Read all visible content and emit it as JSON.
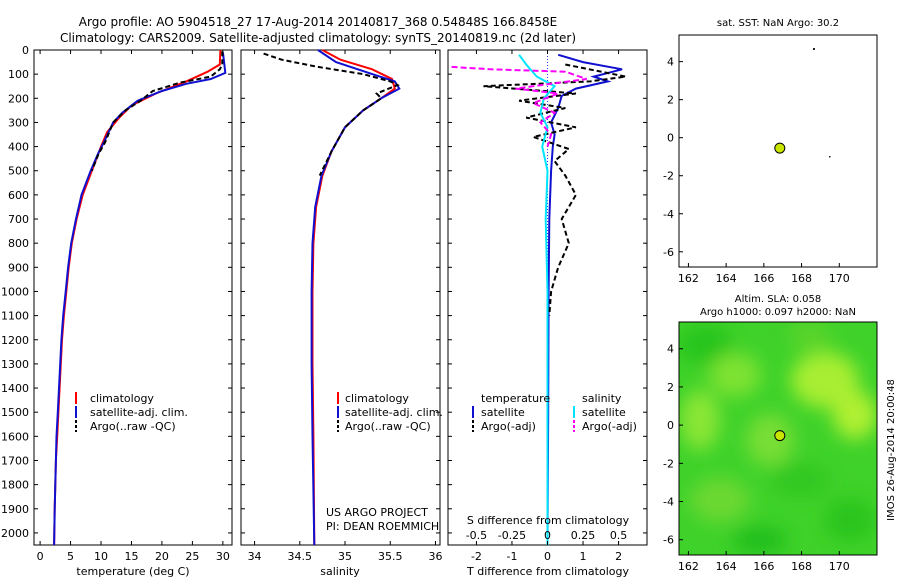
{
  "header": {
    "line1": "Argo profile: AO 5904518_27 17-Aug-2014 20140817_368 0.54848S 166.8458E",
    "line2": "Climatology: CARS2009. Satellite-adjusted climatology: synTS_20140819.nc (2d later)"
  },
  "colors": {
    "climatology": "#ff0000",
    "satellite": "#1010d0",
    "argo": "#000000",
    "salinity_sat": "#00e5ff",
    "argo_adj_s": "#ff00ff",
    "zero_line": "#0000ff",
    "dot": "#c8e600"
  },
  "stamp": "IMOS 26-Aug-2014 20:00:48",
  "chart_data": [
    {
      "id": "temperature",
      "type": "line",
      "xlabel": "temperature (deg C)",
      "ylim": [
        2050,
        0
      ],
      "xlim": [
        -1,
        31.5
      ],
      "xticks": [
        "0",
        "5",
        "10",
        "15",
        "20",
        "25",
        "30"
      ],
      "xtick_values": [
        0,
        5,
        10,
        15,
        20,
        25,
        30
      ],
      "yticks": [
        "0",
        "100",
        "200",
        "300",
        "400",
        "500",
        "600",
        "700",
        "800",
        "900",
        "1000",
        "1100",
        "1200",
        "1300",
        "1400",
        "1500",
        "1600",
        "1700",
        "1800",
        "1900",
        "2000"
      ],
      "legend": {
        "position": "lower-center",
        "entries": [
          "climatology",
          "satellite-adj. clim.",
          "Argo(..raw -QC)"
        ]
      },
      "series": [
        {
          "name": "climatology",
          "color": "#ff0000",
          "dash": "",
          "points": [
            [
              29.6,
              0
            ],
            [
              29.5,
              60
            ],
            [
              27.5,
              90
            ],
            [
              24,
              130
            ],
            [
              19,
              180
            ],
            [
              15,
              230
            ],
            [
              13,
              280
            ],
            [
              11,
              340
            ],
            [
              10,
              400
            ],
            [
              8.5,
              500
            ],
            [
              7,
              600
            ],
            [
              6,
              700
            ],
            [
              5.2,
              800
            ],
            [
              4.7,
              900
            ],
            [
              4.3,
              1000
            ],
            [
              3.9,
              1100
            ],
            [
              3.6,
              1200
            ],
            [
              3.4,
              1300
            ],
            [
              3.2,
              1400
            ],
            [
              3.0,
              1500
            ],
            [
              2.8,
              1600
            ],
            [
              2.6,
              1700
            ],
            [
              2.5,
              1800
            ],
            [
              2.4,
              1900
            ],
            [
              2.3,
              2050
            ]
          ]
        },
        {
          "name": "satellite-adj. clim.",
          "color": "#1010d0",
          "dash": "",
          "points": [
            [
              30,
              10
            ],
            [
              30.2,
              50
            ],
            [
              30.4,
              95
            ],
            [
              28,
              120
            ],
            [
              24,
              140
            ],
            [
              20,
              170
            ],
            [
              16,
              210
            ],
            [
              13.5,
              260
            ],
            [
              12,
              300
            ],
            [
              10.5,
              380
            ],
            [
              9.5,
              430
            ],
            [
              8.3,
              500
            ],
            [
              6.8,
              600
            ],
            [
              5.9,
              700
            ],
            [
              5.1,
              800
            ],
            [
              4.6,
              900
            ],
            [
              4.2,
              1000
            ],
            [
              3.8,
              1100
            ],
            [
              3.5,
              1200
            ],
            [
              3.3,
              1300
            ],
            [
              3.1,
              1400
            ],
            [
              2.9,
              1500
            ],
            [
              2.7,
              1600
            ],
            [
              2.6,
              1700
            ],
            [
              2.5,
              1800
            ],
            [
              2.4,
              1900
            ],
            [
              2.3,
              2050
            ]
          ]
        },
        {
          "name": "Argo(..raw -QC)",
          "color": "#000000",
          "dash": "5,3",
          "points": [
            [
              29.9,
              5
            ],
            [
              29.9,
              60
            ],
            [
              29.5,
              80
            ],
            [
              28,
              110
            ],
            [
              23,
              135
            ],
            [
              18.5,
              170
            ],
            [
              16.5,
              210
            ],
            [
              14,
              250
            ],
            [
              12,
              300
            ],
            [
              10.7,
              380
            ],
            [
              9.6,
              430
            ],
            [
              8.5,
              500
            ]
          ]
        }
      ]
    },
    {
      "id": "salinity",
      "type": "line",
      "xlabel": "salinity",
      "ylim": [
        2050,
        0
      ],
      "xlim": [
        33.85,
        36.05
      ],
      "xticks": [
        "34",
        "34.5",
        "35",
        "35.5",
        "36"
      ],
      "xtick_values": [
        34,
        34.5,
        35,
        35.5,
        36
      ],
      "legend": {
        "position": "lower-center",
        "entries": [
          "climatology",
          "satellite-adj. clim.",
          "Argo(..raw -QC)"
        ]
      },
      "annotation": [
        "US ARGO PROJECT",
        "PI: DEAN ROEMMICH"
      ],
      "series": [
        {
          "name": "climatology",
          "color": "#ff0000",
          "dash": "",
          "points": [
            [
              34.75,
              0
            ],
            [
              34.95,
              40
            ],
            [
              35.3,
              80
            ],
            [
              35.52,
              120
            ],
            [
              35.55,
              160
            ],
            [
              35.4,
              200
            ],
            [
              35.2,
              250
            ],
            [
              35.0,
              320
            ],
            [
              34.85,
              420
            ],
            [
              34.75,
              520
            ],
            [
              34.68,
              650
            ],
            [
              34.65,
              800
            ],
            [
              34.64,
              1000
            ],
            [
              34.64,
              1300
            ],
            [
              34.65,
              1600
            ],
            [
              34.66,
              2050
            ]
          ]
        },
        {
          "name": "satellite-adj. clim.",
          "color": "#1010d0",
          "dash": "",
          "points": [
            [
              34.7,
              0
            ],
            [
              34.9,
              50
            ],
            [
              35.3,
              100
            ],
            [
              35.55,
              130
            ],
            [
              35.6,
              160
            ],
            [
              35.4,
              200
            ],
            [
              35.2,
              250
            ],
            [
              35.0,
              320
            ],
            [
              34.85,
              420
            ],
            [
              34.74,
              520
            ],
            [
              34.67,
              650
            ],
            [
              34.64,
              800
            ],
            [
              34.63,
              1000
            ],
            [
              34.63,
              1300
            ],
            [
              34.64,
              1600
            ],
            [
              34.66,
              2050
            ]
          ]
        },
        {
          "name": "Argo(..raw -QC)",
          "color": "#000000",
          "dash": "5,3",
          "points": [
            [
              34.1,
              15
            ],
            [
              34.3,
              40
            ],
            [
              34.7,
              70
            ],
            [
              35.2,
              100
            ],
            [
              35.5,
              130
            ],
            [
              35.58,
              145
            ],
            [
              35.35,
              180
            ],
            [
              35.4,
              200
            ],
            [
              35.2,
              250
            ],
            [
              35.0,
              320
            ],
            [
              34.85,
              420
            ],
            [
              34.72,
              520
            ]
          ]
        }
      ]
    },
    {
      "id": "difference",
      "type": "line",
      "xlabel": "T difference from climatology",
      "top_xlabel": "S difference from climatology",
      "ylim": [
        2050,
        0
      ],
      "xlim": [
        -2.8,
        2.8
      ],
      "xticks": [
        "-2",
        "-1",
        "0",
        "1",
        "2"
      ],
      "xtick_values": [
        -2,
        -1,
        0,
        1,
        2
      ],
      "top_xticks": [
        "-0.5",
        "-0.25",
        "0",
        "0.25",
        "0.5"
      ],
      "top_xtick_values": [
        -2,
        -1,
        0,
        1,
        2
      ],
      "legend": {
        "position": "lower-center",
        "headers": [
          "temperature",
          "salinity"
        ],
        "entries": [
          "satellite",
          "Argo(-adj)",
          "satellite",
          "Argo(-adj)"
        ]
      },
      "series": [
        {
          "name": "T satellite",
          "color": "#1010d0",
          "dash": "",
          "points": [
            [
              0.3,
              20
            ],
            [
              1.0,
              50
            ],
            [
              2.1,
              80
            ],
            [
              1.3,
              110
            ],
            [
              1.7,
              130
            ],
            [
              0.8,
              160
            ],
            [
              0.4,
              190
            ],
            [
              0.3,
              240
            ],
            [
              0.1,
              300
            ],
            [
              0.2,
              350
            ],
            [
              0.15,
              400
            ],
            [
              0.1,
              500
            ],
            [
              0.05,
              700
            ],
            [
              0.03,
              1000
            ],
            [
              0.02,
              1500
            ],
            [
              0.0,
              2050
            ]
          ]
        },
        {
          "name": "T Argo(-adj)",
          "color": "#000000",
          "dash": "5,3",
          "points": [
            [
              0.5,
              60
            ],
            [
              2.2,
              110
            ],
            [
              1.2,
              130
            ],
            [
              -1.8,
              150
            ],
            [
              0.8,
              180
            ],
            [
              -0.8,
              210
            ],
            [
              0.5,
              240
            ],
            [
              -0.6,
              280
            ],
            [
              0.8,
              320
            ],
            [
              -0.4,
              360
            ],
            [
              0.6,
              410
            ],
            [
              0.2,
              460
            ],
            [
              0.5,
              520
            ],
            [
              0.8,
              600
            ],
            [
              0.4,
              700
            ],
            [
              0.6,
              800
            ],
            [
              0.3,
              900
            ],
            [
              0.1,
              1000
            ],
            [
              0.05,
              1100
            ]
          ]
        },
        {
          "name": "S satellite",
          "color": "#00e5ff",
          "dash": "",
          "points": [
            [
              -0.8,
              20
            ],
            [
              -0.6,
              60
            ],
            [
              -0.3,
              110
            ],
            [
              0.2,
              150
            ],
            [
              -0.1,
              200
            ],
            [
              -0.2,
              260
            ],
            [
              0.0,
              320
            ],
            [
              -0.15,
              400
            ],
            [
              0.0,
              500
            ],
            [
              -0.05,
              700
            ],
            [
              0.0,
              1000
            ],
            [
              0.0,
              1500
            ],
            [
              0.0,
              2050
            ]
          ]
        },
        {
          "name": "S Argo(-adj)",
          "color": "#ff00ff",
          "dash": "6,3",
          "points": [
            [
              -2.7,
              70
            ],
            [
              -1.6,
              80
            ],
            [
              0.5,
              90
            ],
            [
              1.1,
              120
            ],
            [
              -0.9,
              160
            ],
            [
              0.3,
              180
            ],
            [
              -0.4,
              220
            ],
            [
              0.2,
              260
            ],
            [
              -0.2,
              300
            ],
            [
              0.1,
              350
            ],
            [
              0.0,
              400
            ]
          ]
        }
      ]
    },
    {
      "id": "sst_map",
      "type": "scatter",
      "title": "sat. SST: NaN Argo: 30.2",
      "xlim": [
        161.5,
        172
      ],
      "ylim": [
        -6.8,
        5.4
      ],
      "xticks": [
        "162",
        "164",
        "166",
        "168",
        "170"
      ],
      "xtick_values": [
        162,
        164,
        166,
        168,
        170
      ],
      "yticks": [
        "4",
        "2",
        "0",
        "-2",
        "-4",
        "-6"
      ],
      "ytick_values": [
        4,
        2,
        0,
        -2,
        -4,
        -6
      ],
      "points": [
        [
          166.8458,
          -0.54848
        ]
      ]
    },
    {
      "id": "sla_map",
      "type": "heatmap",
      "title": "Altim. SLA: 0.058",
      "subtitle": "Argo h1000: 0.097 h2000: NaN",
      "xlim": [
        161.5,
        172
      ],
      "ylim": [
        -6.8,
        5.4
      ],
      "xticks": [
        "162",
        "164",
        "166",
        "168",
        "170"
      ],
      "xtick_values": [
        162,
        164,
        166,
        168,
        170
      ],
      "yticks": [
        "4",
        "2",
        "0",
        "-2",
        "-4",
        "-6"
      ],
      "ytick_values": [
        4,
        2,
        0,
        -2,
        -4,
        -6
      ],
      "points": [
        [
          166.8458,
          -0.54848
        ]
      ]
    }
  ]
}
